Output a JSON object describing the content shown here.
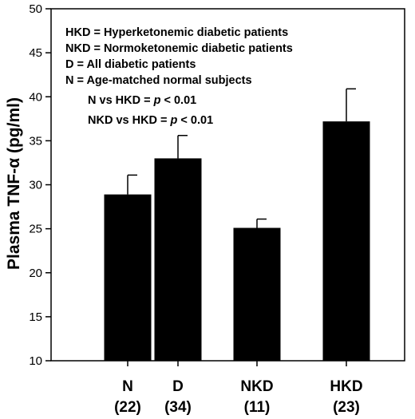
{
  "chart_data": {
    "type": "bar",
    "categories": [
      "N",
      "D",
      "NKD",
      "HKD"
    ],
    "category_counts": [
      "(22)",
      "(34)",
      "(11)",
      "(23)"
    ],
    "values": [
      28.9,
      33.0,
      25.1,
      37.2
    ],
    "errors": [
      2.2,
      2.6,
      1.0,
      3.7
    ],
    "ylabel": "Plasma TNF-α (pg/ml)",
    "ylim": [
      10,
      50
    ],
    "yticks": [
      10,
      15,
      20,
      25,
      30,
      35,
      40,
      45,
      50
    ],
    "grid": false,
    "bar_color": "#000000",
    "legend_lines": [
      "HKD = Hyperketonemic diabetic patients",
      "NKD = Normoketonemic diabetic patients",
      "D = All diabetic patients",
      "N = Age-matched normal subjects"
    ],
    "annotations": [
      {
        "prefix": "N vs HKD = ",
        "p": "p",
        "suffix": " < 0.01"
      },
      {
        "prefix": "NKD vs HKD = ",
        "p": "p",
        "suffix": " < 0.01"
      }
    ]
  }
}
